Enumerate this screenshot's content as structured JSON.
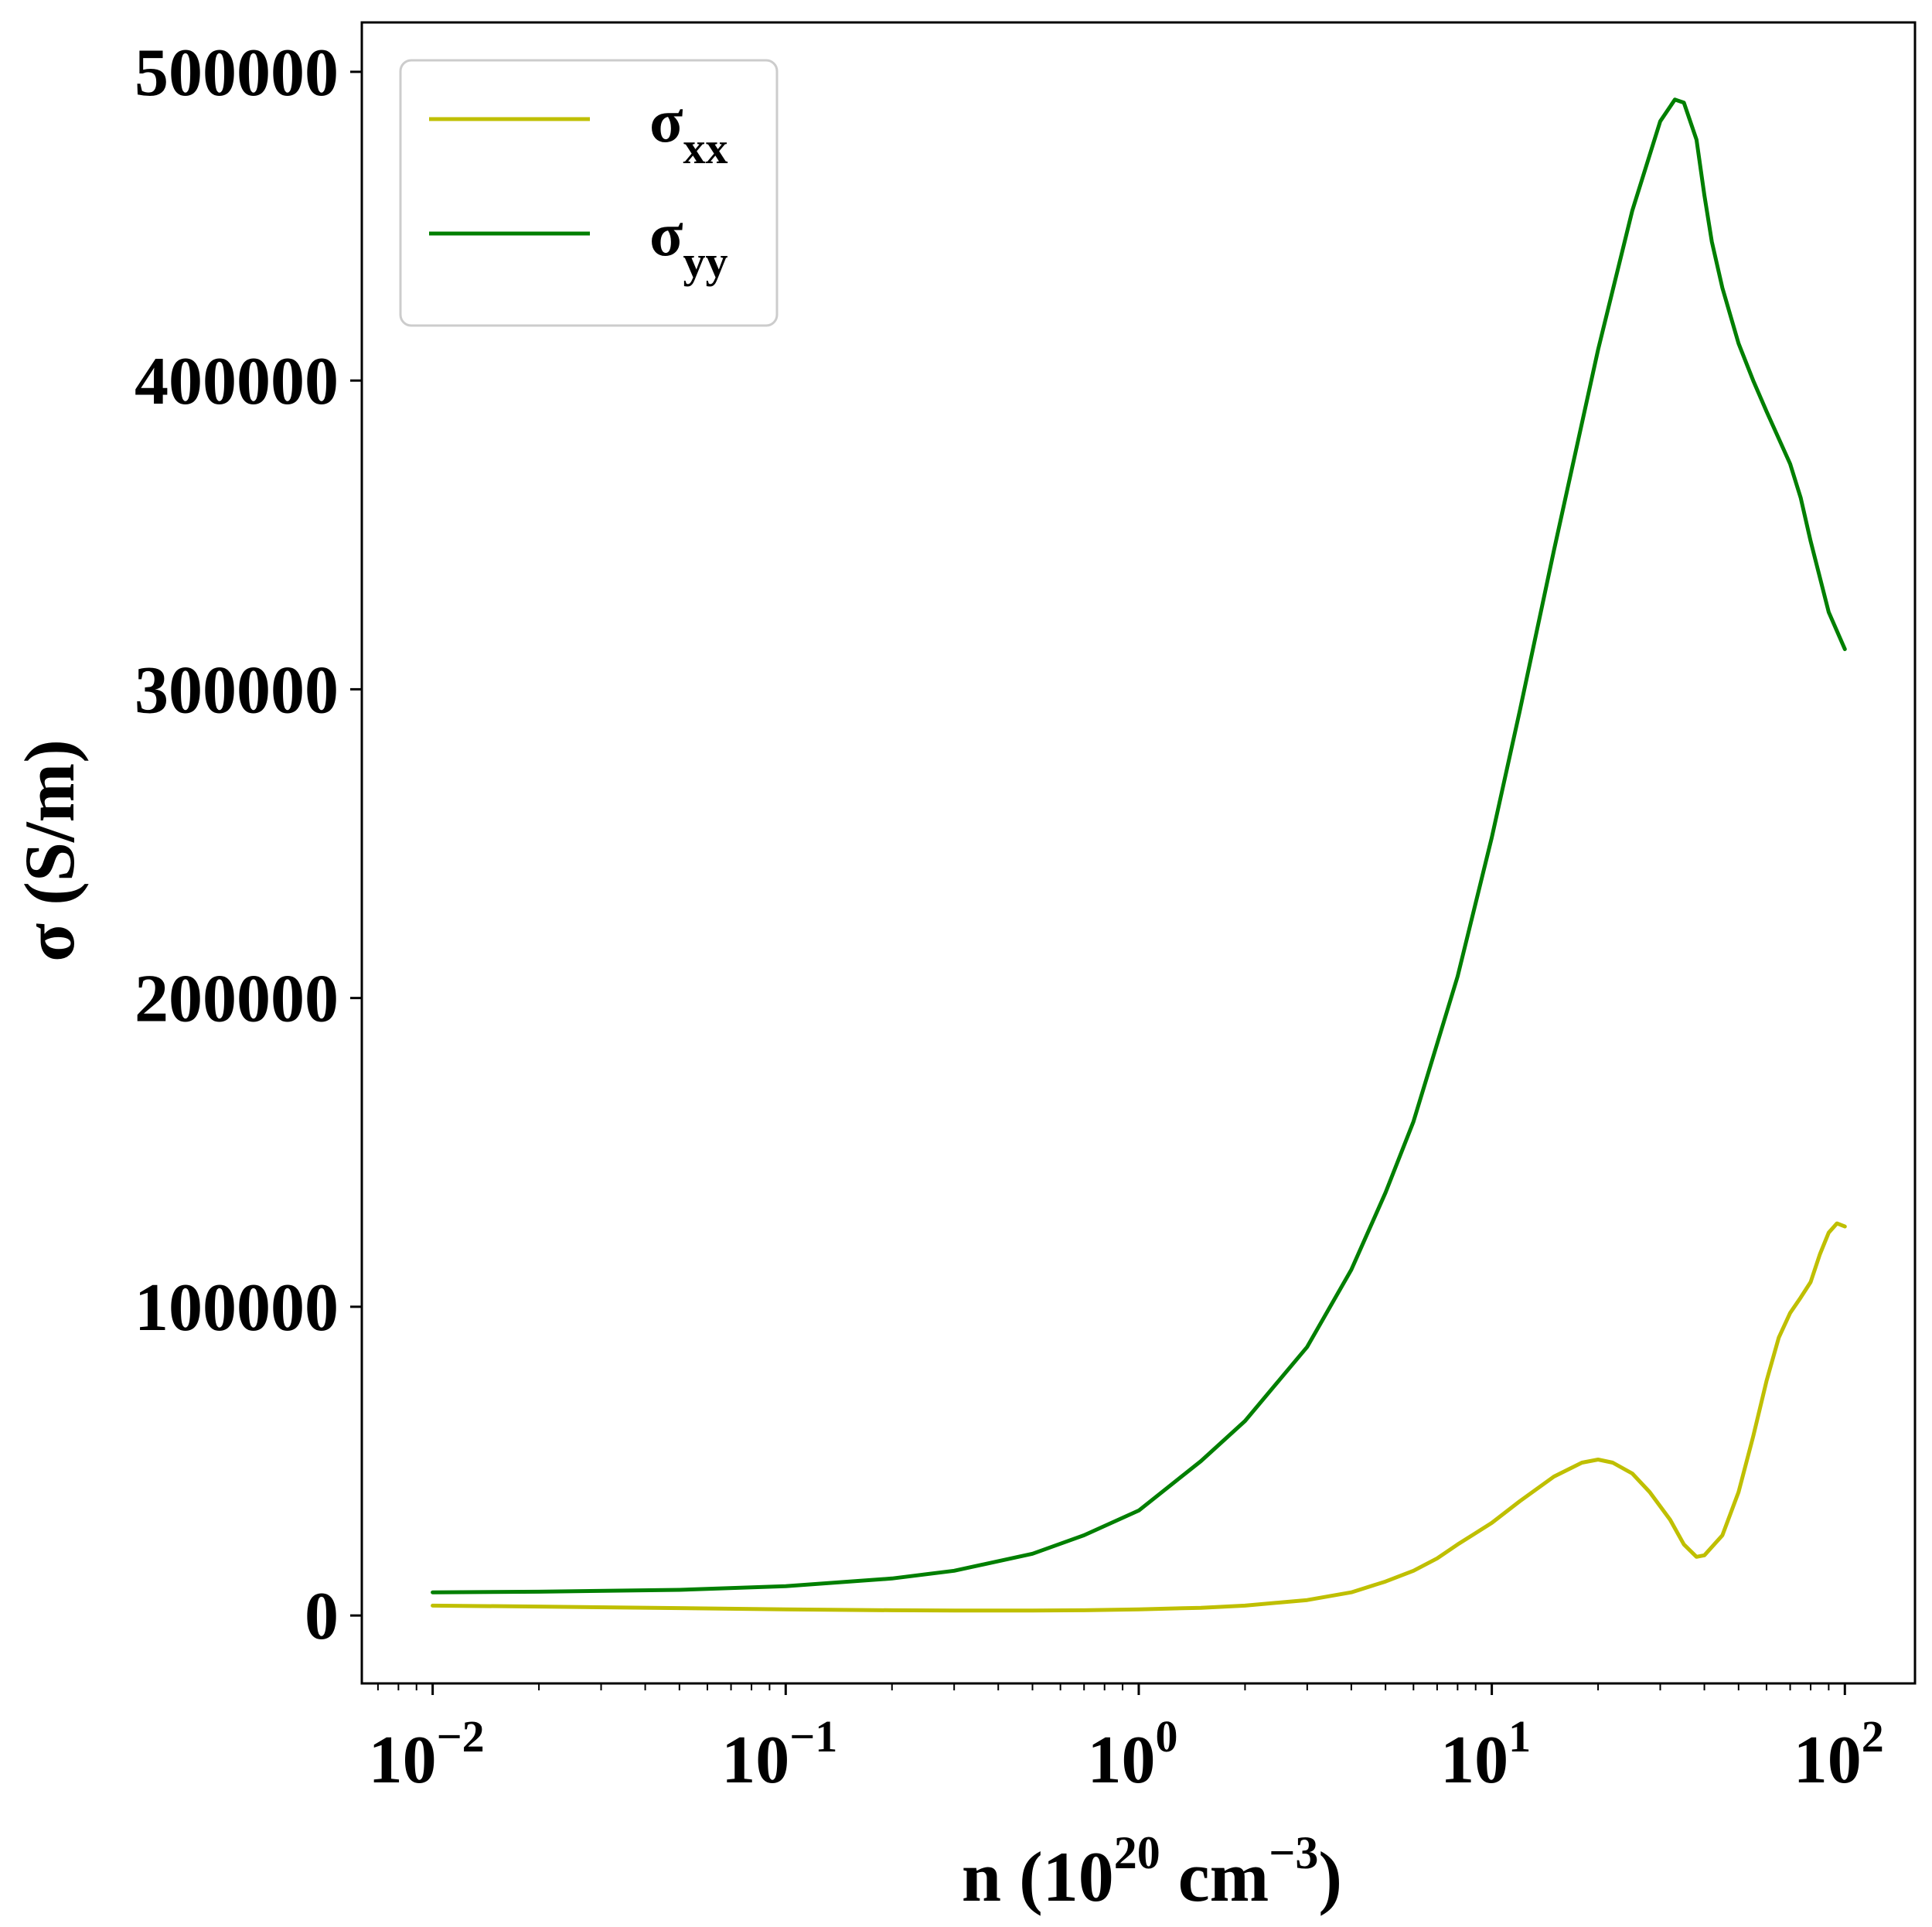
{
  "chart_data": {
    "type": "line",
    "xscale": "log",
    "xlim": [
      0.0063,
      158
    ],
    "ylim": [
      -22000,
      516000
    ],
    "x_ticks": [
      {
        "base": "10",
        "exp": "−2"
      },
      {
        "base": "10",
        "exp": "−1"
      },
      {
        "base": "10",
        "exp": "0"
      },
      {
        "base": "10",
        "exp": "1"
      },
      {
        "base": "10",
        "exp": "2"
      }
    ],
    "y_ticks": [
      "0",
      "100000",
      "200000",
      "300000",
      "400000",
      "500000"
    ],
    "xlabel": {
      "prefix": "n (10",
      "sup1": "20",
      "mid": " cm",
      "sup2": "−3",
      "suffix": ")"
    },
    "ylabel": "σ (S/m)",
    "grid": false,
    "legend": {
      "location": "upper-left"
    },
    "series": [
      {
        "name": "σxx",
        "label_main": "σ",
        "label_sub": "xx",
        "color": "#bfbf00",
        "points": [
          [
            0.01,
            3200
          ],
          [
            0.02,
            2900
          ],
          [
            0.05,
            2400
          ],
          [
            0.1,
            2000
          ],
          [
            0.2,
            1700
          ],
          [
            0.3,
            1600
          ],
          [
            0.5,
            1600
          ],
          [
            0.7,
            1700
          ],
          [
            1,
            2000
          ],
          [
            1.5,
            2500
          ],
          [
            2,
            3200
          ],
          [
            3,
            5000
          ],
          [
            4,
            7500
          ],
          [
            5,
            11000
          ],
          [
            6,
            14500
          ],
          [
            7,
            18500
          ],
          [
            8,
            23000
          ],
          [
            10,
            30000
          ],
          [
            12,
            37000
          ],
          [
            15,
            45000
          ],
          [
            18,
            49500
          ],
          [
            20,
            50500
          ],
          [
            22,
            49500
          ],
          [
            25,
            46000
          ],
          [
            28,
            40000
          ],
          [
            32,
            31000
          ],
          [
            35,
            23000
          ],
          [
            38,
            19000
          ],
          [
            40,
            19500
          ],
          [
            45,
            26000
          ],
          [
            50,
            40000
          ],
          [
            55,
            58000
          ],
          [
            60,
            76000
          ],
          [
            65,
            90000
          ],
          [
            70,
            98000
          ],
          [
            75,
            103000
          ],
          [
            80,
            108000
          ],
          [
            85,
            117000
          ],
          [
            90,
            124000
          ],
          [
            95,
            127000
          ],
          [
            100,
            126000
          ]
        ]
      },
      {
        "name": "σyy",
        "label_main": "σ",
        "label_sub": "yy",
        "color": "#007f00",
        "points": [
          [
            0.01,
            7500
          ],
          [
            0.02,
            7700
          ],
          [
            0.05,
            8300
          ],
          [
            0.1,
            9500
          ],
          [
            0.2,
            12000
          ],
          [
            0.3,
            14500
          ],
          [
            0.5,
            20000
          ],
          [
            0.7,
            26000
          ],
          [
            1,
            34000
          ],
          [
            1.5,
            50000
          ],
          [
            2,
            63000
          ],
          [
            3,
            87000
          ],
          [
            4,
            112000
          ],
          [
            5,
            137000
          ],
          [
            6,
            160000
          ],
          [
            8,
            207000
          ],
          [
            10,
            252000
          ],
          [
            12,
            293000
          ],
          [
            15,
            345000
          ],
          [
            20,
            410000
          ],
          [
            25,
            455000
          ],
          [
            30,
            484000
          ],
          [
            33,
            491000
          ],
          [
            35,
            490000
          ],
          [
            38,
            478000
          ],
          [
            40,
            460000
          ],
          [
            42,
            445000
          ],
          [
            45,
            430000
          ],
          [
            50,
            412000
          ],
          [
            55,
            400000
          ],
          [
            60,
            390000
          ],
          [
            70,
            373000
          ],
          [
            75,
            362000
          ],
          [
            80,
            348000
          ],
          [
            90,
            325000
          ],
          [
            100,
            313000
          ]
        ]
      }
    ]
  }
}
